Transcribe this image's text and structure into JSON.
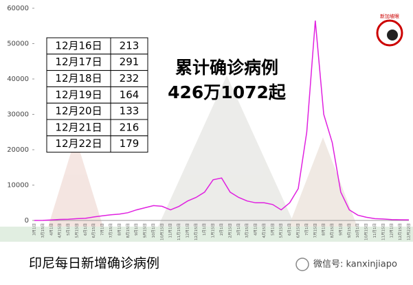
{
  "chart_data": {
    "type": "line",
    "categories": [
      "3月1日",
      "3月15日",
      "4月1日",
      "4月15日",
      "5月1日",
      "5月15日",
      "6月1日",
      "6月15日",
      "7月1日",
      "7月15日",
      "8月1日",
      "8月15日",
      "9月1日",
      "9月15日",
      "10月1日",
      "10月15日",
      "11月1日",
      "11月15日",
      "12月1日",
      "12月15日",
      "1月1日",
      "1月15日",
      "2月1日",
      "2月15日",
      "3月1日",
      "3月15日",
      "4月1日",
      "4月15日",
      "5月1日",
      "5月15日",
      "6月1日",
      "6月15日",
      "7月1日",
      "7月15日",
      "8月1日",
      "8月15日",
      "9月1日",
      "9月15日",
      "10月1日",
      "10月15日",
      "11月1日",
      "11月15日",
      "12月1日",
      "12月15日",
      "12月22日"
    ],
    "values": [
      0,
      20,
      150,
      300,
      350,
      500,
      600,
      1000,
      1300,
      1600,
      1800,
      2200,
      3000,
      3600,
      4200,
      4000,
      3000,
      4000,
      5500,
      6500,
      8000,
      11500,
      12000,
      8000,
      6500,
      5500,
      5000,
      5000,
      4500,
      3000,
      5000,
      9000,
      25000,
      56500,
      30000,
      22000,
      8000,
      3000,
      1500,
      900,
      500,
      400,
      250,
      200,
      179
    ],
    "color": "#e020e0",
    "ylim": [
      0,
      60000
    ],
    "yticks": [
      0,
      10000,
      20000,
      30000,
      40000,
      50000,
      60000
    ]
  },
  "table": {
    "rows": [
      [
        "12月16日",
        "213"
      ],
      [
        "12月17日",
        "291"
      ],
      [
        "12月18日",
        "232"
      ],
      [
        "12月19日",
        "164"
      ],
      [
        "12月20日",
        "133"
      ],
      [
        "12月21日",
        "216"
      ],
      [
        "12月22日",
        "179"
      ]
    ]
  },
  "headline": [
    "累计确诊病例",
    "426万1072起"
  ],
  "caption": "印尼每日新增确诊病例",
  "watermark": "微信号: kanxinjiapo",
  "logo": "新加坡眼"
}
